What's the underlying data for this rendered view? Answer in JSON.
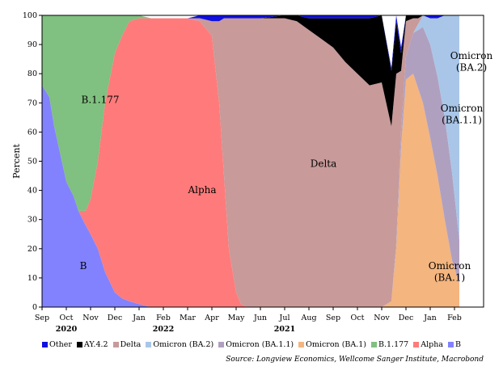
{
  "chart_data": {
    "type": "area",
    "stacked": true,
    "ylabel": "Percent",
    "ylim": [
      0,
      100
    ],
    "yticks": [
      0,
      10,
      20,
      30,
      40,
      50,
      60,
      70,
      80,
      90,
      100
    ],
    "x_tick_labels": [
      "Sep",
      "Oct",
      "Nov",
      "Dec",
      "Jan",
      "Feb",
      "Mar",
      "Apr",
      "May",
      "Jun",
      "Jul",
      "Aug",
      "Sep",
      "Oct",
      "Nov",
      "Dec",
      "Jan",
      "Feb"
    ],
    "year_labels": [
      {
        "label": "2020",
        "at": "Oct"
      },
      {
        "label": "2021",
        "at": "Jul"
      },
      {
        "label": "2022",
        "at": "Feb"
      }
    ],
    "x_months": [
      0,
      0.3,
      0.5,
      1.0,
      1.3,
      1.5,
      1.8,
      2.0,
      2.3,
      2.6,
      3.0,
      3.3,
      3.6,
      4.0,
      4.5,
      5.0,
      5.5,
      6.0,
      6.5,
      7.0,
      7.3,
      7.5,
      7.7,
      8.0,
      8.2,
      8.5,
      9.0,
      9.5,
      10.0,
      10.5,
      11.0,
      11.5,
      12.0,
      12.5,
      13.0,
      13.5,
      14.0,
      14.4,
      14.6,
      14.8,
      15.0,
      15.3,
      15.5,
      15.7,
      16.0,
      16.3,
      16.6,
      16.9,
      17.2
    ],
    "series": [
      {
        "name": "B",
        "color": "#8282ff",
        "values": [
          76,
          72,
          62,
          43,
          38,
          33,
          28,
          25,
          20,
          12,
          5,
          3,
          2,
          1,
          0,
          0,
          0,
          0,
          0,
          0,
          0,
          0,
          0,
          0,
          0,
          0,
          0,
          0,
          0,
          0,
          0,
          0,
          0,
          0,
          0,
          0,
          0,
          0,
          0,
          0,
          0,
          0,
          0,
          0,
          0,
          0,
          0,
          0,
          0
        ]
      },
      {
        "name": "Alpha",
        "color": "#ff7b7b",
        "values": [
          0,
          0,
          0,
          0,
          0,
          0,
          5,
          12,
          30,
          58,
          82,
          90,
          96,
          98,
          99,
          99,
          99,
          99,
          98,
          93,
          70,
          45,
          20,
          5,
          1,
          0,
          0,
          0,
          0,
          0,
          0,
          0,
          0,
          0,
          0,
          0,
          0,
          0,
          0,
          0,
          0,
          0,
          0,
          0,
          0,
          0,
          0,
          0,
          0
        ]
      },
      {
        "name": "B.1.177",
        "color": "#80c080",
        "values": [
          24,
          28,
          38,
          57,
          62,
          67,
          67,
          63,
          50,
          30,
          13,
          7,
          2,
          1,
          0,
          0,
          0,
          0,
          0,
          0,
          0,
          0,
          0,
          0,
          0,
          0,
          0,
          0,
          0,
          0,
          0,
          0,
          0,
          0,
          0,
          0,
          0,
          0,
          0,
          0,
          0,
          0,
          0,
          0,
          0,
          0,
          0,
          0,
          0
        ]
      },
      {
        "name": "Omicron (BA.1)",
        "color": "#f4b57f",
        "values": [
          0,
          0,
          0,
          0,
          0,
          0,
          0,
          0,
          0,
          0,
          0,
          0,
          0,
          0,
          0,
          0,
          0,
          0,
          0,
          0,
          0,
          0,
          0,
          0,
          0,
          0,
          0,
          0,
          0,
          0,
          0,
          0,
          0,
          0,
          0,
          0,
          0,
          2,
          20,
          55,
          78,
          80,
          75,
          70,
          58,
          45,
          30,
          16,
          8
        ]
      },
      {
        "name": "Omicron (BA.1.1)",
        "color": "#b0a0c0",
        "values": [
          0,
          0,
          0,
          0,
          0,
          0,
          0,
          0,
          0,
          0,
          0,
          0,
          0,
          0,
          0,
          0,
          0,
          0,
          0,
          0,
          0,
          0,
          0,
          0,
          0,
          0,
          0,
          0,
          0,
          0,
          0,
          0,
          0,
          0,
          0,
          0,
          0,
          0,
          2,
          6,
          8,
          14,
          20,
          26,
          32,
          34,
          35,
          30,
          15
        ]
      },
      {
        "name": "Omicron (BA.2)",
        "color": "#a9c6e8",
        "values": [
          0,
          0,
          0,
          0,
          0,
          0,
          0,
          0,
          0,
          0,
          0,
          0,
          0,
          0,
          0,
          0,
          0,
          0,
          0,
          0,
          0,
          0,
          0,
          0,
          0,
          0,
          0,
          0,
          0,
          0,
          0,
          0,
          0,
          0,
          0,
          0,
          0,
          0,
          0,
          0,
          0,
          0,
          2,
          4,
          9,
          20,
          35,
          54,
          77
        ]
      },
      {
        "name": "Delta",
        "color": "#c89a9a",
        "values": [
          0,
          0,
          0,
          0,
          0,
          0,
          0,
          0,
          0,
          0,
          0,
          0,
          0,
          0,
          0,
          0,
          0,
          0,
          1,
          5,
          28,
          54,
          79,
          94,
          98,
          99,
          99,
          99,
          99,
          98,
          95,
          92,
          89,
          84,
          80,
          76,
          77,
          60,
          58,
          20,
          12,
          5,
          2,
          0,
          0,
          0,
          0,
          0,
          0
        ]
      },
      {
        "name": "AY.4.2",
        "color": "#000000",
        "values": [
          0,
          0,
          0,
          0,
          0,
          0,
          0,
          0,
          0,
          0,
          0,
          0,
          0,
          0,
          0,
          0,
          0,
          0,
          0,
          0,
          0,
          0,
          0,
          0,
          0,
          0,
          0,
          0.5,
          1,
          2,
          4,
          7,
          10,
          15,
          19,
          23,
          23,
          19,
          18,
          6,
          2,
          1,
          1,
          0,
          0,
          0,
          0,
          0,
          0
        ]
      },
      {
        "name": "Other",
        "color": "#1010e0",
        "values": [
          0,
          0,
          0,
          0,
          0,
          0,
          0,
          0,
          0,
          0,
          0,
          0,
          0,
          0,
          0,
          0,
          0,
          0,
          1,
          2,
          2,
          1,
          1,
          1,
          1,
          1,
          1,
          0.5,
          0,
          0,
          1,
          1,
          1,
          1,
          1,
          1,
          0,
          1,
          2,
          2,
          0,
          0,
          0,
          0,
          1,
          1,
          0,
          0,
          0
        ]
      }
    ],
    "legend_order": [
      "Other",
      "AY.4.2",
      "Delta",
      "Omicron (BA.2)",
      "Omicron (BA.1.1)",
      "Omicron (BA.1)",
      "B.1.177",
      "Alpha",
      "B"
    ],
    "annotations": [
      {
        "text": "B.1.177",
        "x": 2.4,
        "y": 70
      },
      {
        "text": "Alpha",
        "x": 6.6,
        "y": 39
      },
      {
        "text": "Delta",
        "x": 11.6,
        "y": 48
      },
      {
        "text": "B",
        "x": 1.7,
        "y": 13
      },
      {
        "text": "Omicron",
        "x": 17.7,
        "y": 85
      },
      {
        "text": "(BA.2)",
        "x": 17.7,
        "y": 81
      },
      {
        "text": "Omicron",
        "x": 17.3,
        "y": 67
      },
      {
        "text": "(BA.1.1)",
        "x": 17.3,
        "y": 63
      },
      {
        "text": "Omicron",
        "x": 16.8,
        "y": 13
      },
      {
        "text": "(BA.1)",
        "x": 16.8,
        "y": 9
      }
    ]
  },
  "source": "Source: Longview Economics, Wellcome Sanger Institute, Macrobond"
}
